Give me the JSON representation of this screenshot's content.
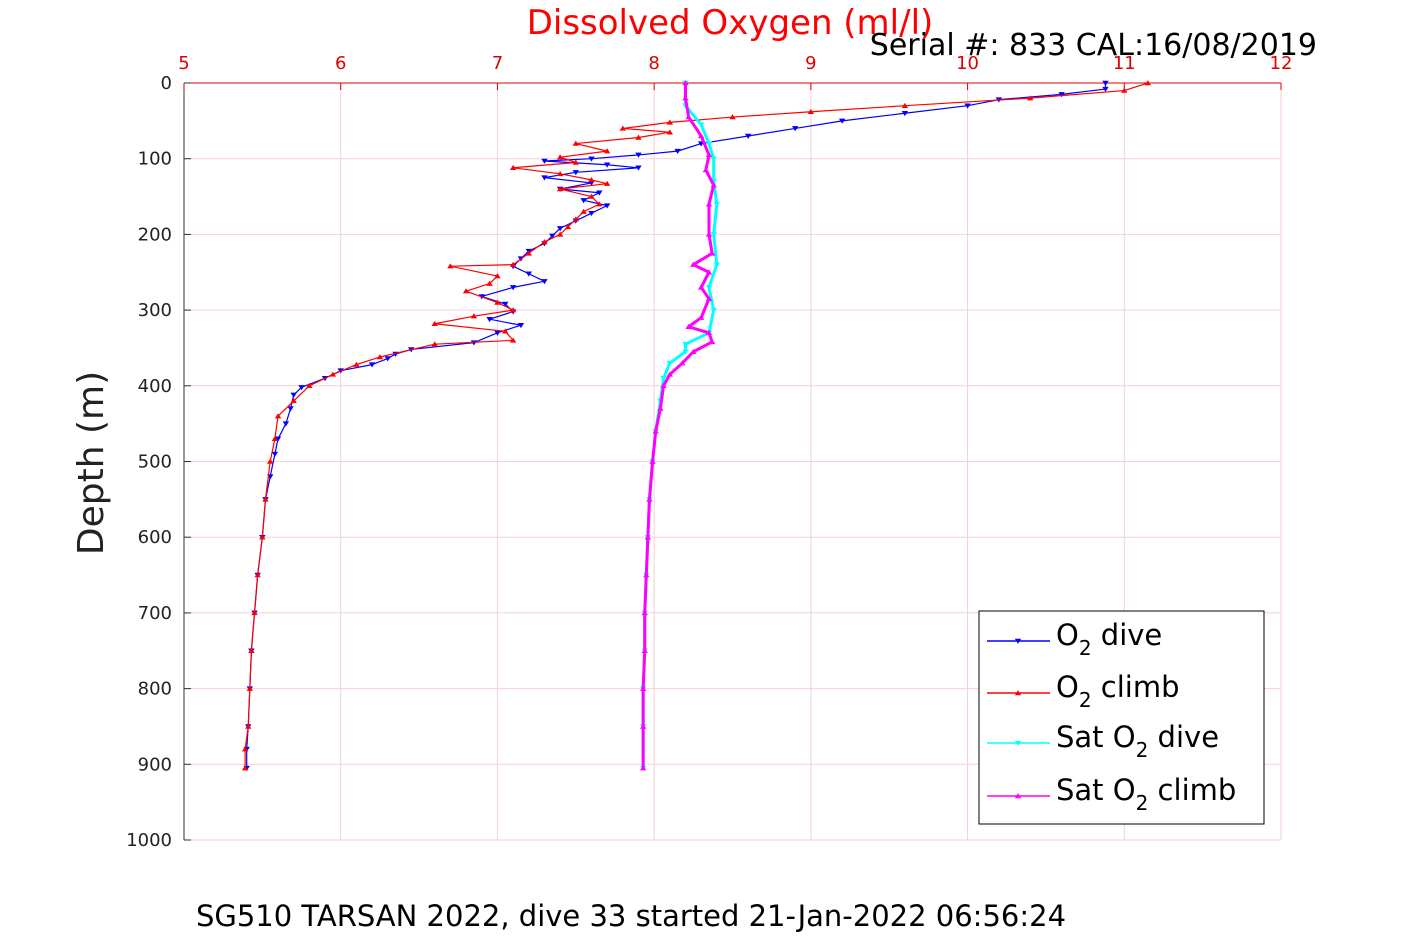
{
  "chart_data": {
    "type": "scatter",
    "title": "Dissolved Oxygen (ml/l)",
    "subtitle": "Serial #: 833  CAL:16/08/2019",
    "ylabel": "Depth (m)",
    "footer": "SG510 TARSAN 2022, dive 33 started 21-Jan-2022 06:56:24",
    "xlim": [
      5,
      12
    ],
    "ylim": [
      0,
      1000
    ],
    "y_reversed": true,
    "x_axis_position": "top",
    "grid": true,
    "legend_position": "bottom-right",
    "x_ticks": [
      "5",
      "6",
      "7",
      "8",
      "9",
      "10",
      "11",
      "12"
    ],
    "y_ticks": [
      "0",
      "100",
      "200",
      "300",
      "400",
      "500",
      "600",
      "700",
      "800",
      "900",
      "1000"
    ],
    "colors": {
      "o2_dive": "#0000ff",
      "o2_climb": "#ff0000",
      "sat_dive": "#00ffff",
      "sat_climb": "#ff00ff",
      "title": "#ff0000",
      "x_ticks": "#e00000",
      "grid": "#f4cfd6"
    },
    "series": [
      {
        "name": "O2 dive",
        "legend": {
          "main": "O",
          "sub": "2",
          "suffix": " dive"
        },
        "color": "#0000ff",
        "marker": "triangle-down",
        "points": [
          [
            10.88,
            0
          ],
          [
            10.88,
            8
          ],
          [
            10.6,
            15
          ],
          [
            10.2,
            22
          ],
          [
            10.0,
            30
          ],
          [
            9.6,
            40
          ],
          [
            9.2,
            50
          ],
          [
            8.9,
            60
          ],
          [
            8.6,
            70
          ],
          [
            8.3,
            80
          ],
          [
            8.15,
            90
          ],
          [
            7.9,
            95
          ],
          [
            7.6,
            100
          ],
          [
            7.3,
            103
          ],
          [
            7.7,
            108
          ],
          [
            7.9,
            112
          ],
          [
            7.5,
            118
          ],
          [
            7.3,
            125
          ],
          [
            7.6,
            132
          ],
          [
            7.4,
            140
          ],
          [
            7.65,
            145
          ],
          [
            7.55,
            155
          ],
          [
            7.7,
            162
          ],
          [
            7.6,
            172
          ],
          [
            7.5,
            182
          ],
          [
            7.4,
            192
          ],
          [
            7.35,
            202
          ],
          [
            7.3,
            212
          ],
          [
            7.2,
            222
          ],
          [
            7.15,
            232
          ],
          [
            7.1,
            242
          ],
          [
            7.2,
            252
          ],
          [
            7.3,
            262
          ],
          [
            7.1,
            270
          ],
          [
            6.9,
            282
          ],
          [
            7.05,
            292
          ],
          [
            7.1,
            302
          ],
          [
            6.95,
            312
          ],
          [
            7.15,
            320
          ],
          [
            7.0,
            330
          ],
          [
            6.85,
            343
          ],
          [
            6.45,
            352
          ],
          [
            6.35,
            358
          ],
          [
            6.3,
            364
          ],
          [
            6.2,
            372
          ],
          [
            6.0,
            380
          ],
          [
            5.9,
            390
          ],
          [
            5.75,
            402
          ],
          [
            5.7,
            412
          ],
          [
            5.68,
            430
          ],
          [
            5.65,
            450
          ],
          [
            5.6,
            470
          ],
          [
            5.58,
            490
          ],
          [
            5.55,
            520
          ],
          [
            5.52,
            550
          ],
          [
            5.5,
            600
          ],
          [
            5.47,
            650
          ],
          [
            5.45,
            700
          ],
          [
            5.43,
            750
          ],
          [
            5.42,
            800
          ],
          [
            5.41,
            850
          ],
          [
            5.4,
            880
          ],
          [
            5.4,
            905
          ]
        ]
      },
      {
        "name": "O2 climb",
        "legend": {
          "main": "O",
          "sub": "2",
          "suffix": " climb"
        },
        "color": "#ff0000",
        "marker": "triangle-up",
        "points": [
          [
            11.15,
            0
          ],
          [
            11.0,
            10
          ],
          [
            10.4,
            20
          ],
          [
            9.6,
            30
          ],
          [
            9.0,
            38
          ],
          [
            8.5,
            45
          ],
          [
            8.1,
            52
          ],
          [
            7.8,
            60
          ],
          [
            8.1,
            65
          ],
          [
            7.9,
            72
          ],
          [
            7.5,
            80
          ],
          [
            7.7,
            90
          ],
          [
            7.4,
            98
          ],
          [
            7.5,
            105
          ],
          [
            7.1,
            112
          ],
          [
            7.4,
            120
          ],
          [
            7.6,
            128
          ],
          [
            7.7,
            133
          ],
          [
            7.4,
            140
          ],
          [
            7.6,
            150
          ],
          [
            7.65,
            160
          ],
          [
            7.55,
            170
          ],
          [
            7.5,
            180
          ],
          [
            7.45,
            190
          ],
          [
            7.4,
            200
          ],
          [
            7.3,
            210
          ],
          [
            7.2,
            225
          ],
          [
            7.1,
            240
          ],
          [
            6.7,
            242
          ],
          [
            7.0,
            255
          ],
          [
            6.95,
            265
          ],
          [
            6.8,
            275
          ],
          [
            7.0,
            290
          ],
          [
            7.1,
            300
          ],
          [
            6.85,
            308
          ],
          [
            6.6,
            318
          ],
          [
            7.05,
            328
          ],
          [
            7.1,
            340
          ],
          [
            6.6,
            345
          ],
          [
            6.25,
            362
          ],
          [
            6.1,
            372
          ],
          [
            5.95,
            385
          ],
          [
            5.8,
            400
          ],
          [
            5.7,
            420
          ],
          [
            5.6,
            440
          ],
          [
            5.58,
            470
          ],
          [
            5.55,
            500
          ],
          [
            5.52,
            550
          ],
          [
            5.5,
            600
          ],
          [
            5.47,
            650
          ],
          [
            5.45,
            700
          ],
          [
            5.43,
            750
          ],
          [
            5.42,
            800
          ],
          [
            5.41,
            850
          ],
          [
            5.39,
            880
          ],
          [
            5.39,
            905
          ]
        ]
      },
      {
        "name": "Sat O2 dive",
        "legend": {
          "main": "Sat O",
          "sub": "2",
          "suffix": " dive"
        },
        "color": "#00ffff",
        "marker": "triangle-down",
        "points": [
          [
            8.2,
            0
          ],
          [
            8.2,
            30
          ],
          [
            8.3,
            55
          ],
          [
            8.35,
            80
          ],
          [
            8.38,
            100
          ],
          [
            8.38,
            130
          ],
          [
            8.4,
            160
          ],
          [
            8.38,
            200
          ],
          [
            8.4,
            240
          ],
          [
            8.35,
            270
          ],
          [
            8.38,
            300
          ],
          [
            8.35,
            330
          ],
          [
            8.2,
            345
          ],
          [
            8.2,
            355
          ],
          [
            8.1,
            370
          ],
          [
            8.06,
            390
          ],
          [
            8.04,
            420
          ],
          [
            8.01,
            460
          ],
          [
            7.99,
            500
          ],
          [
            7.97,
            550
          ],
          [
            7.96,
            600
          ],
          [
            7.95,
            650
          ],
          [
            7.94,
            700
          ],
          [
            7.94,
            750
          ],
          [
            7.93,
            800
          ],
          [
            7.93,
            850
          ],
          [
            7.93,
            905
          ]
        ]
      },
      {
        "name": "Sat O2 climb",
        "legend": {
          "main": "Sat O",
          "sub": "2",
          "suffix": " climb"
        },
        "color": "#ff00ff",
        "marker": "triangle-up",
        "points": [
          [
            8.2,
            0
          ],
          [
            8.2,
            20
          ],
          [
            8.22,
            45
          ],
          [
            8.3,
            70
          ],
          [
            8.35,
            95
          ],
          [
            8.33,
            115
          ],
          [
            8.38,
            135
          ],
          [
            8.35,
            160
          ],
          [
            8.35,
            200
          ],
          [
            8.37,
            225
          ],
          [
            8.25,
            240
          ],
          [
            8.35,
            250
          ],
          [
            8.3,
            270
          ],
          [
            8.35,
            285
          ],
          [
            8.3,
            310
          ],
          [
            8.22,
            322
          ],
          [
            8.35,
            330
          ],
          [
            8.37,
            342
          ],
          [
            8.25,
            355
          ],
          [
            8.18,
            370
          ],
          [
            8.1,
            385
          ],
          [
            8.06,
            400
          ],
          [
            8.04,
            430
          ],
          [
            8.01,
            460
          ],
          [
            7.99,
            500
          ],
          [
            7.97,
            550
          ],
          [
            7.96,
            600
          ],
          [
            7.95,
            650
          ],
          [
            7.94,
            700
          ],
          [
            7.94,
            750
          ],
          [
            7.93,
            800
          ],
          [
            7.93,
            850
          ],
          [
            7.93,
            905
          ]
        ]
      }
    ]
  }
}
